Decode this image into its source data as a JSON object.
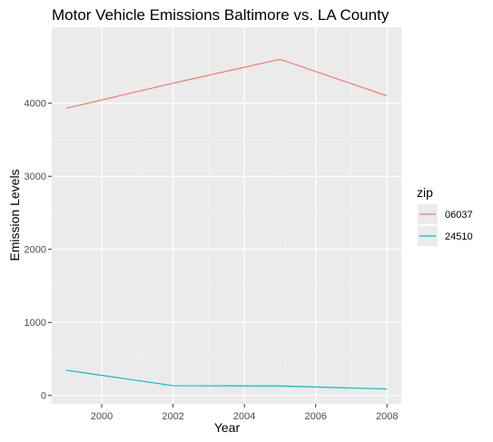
{
  "chart_data": {
    "type": "line",
    "title": "Motor Vehicle Emissions Baltimore vs. LA County",
    "xlabel": "Year",
    "ylabel": "Emission Levels",
    "xlim": [
      1998.6,
      2008.4
    ],
    "ylim": [
      -115,
      5040
    ],
    "x_ticks": [
      2000,
      2002,
      2004,
      2006,
      2008
    ],
    "y_ticks": [
      0,
      1000,
      2000,
      3000,
      4000
    ],
    "grid": true,
    "legend": {
      "title": "zip",
      "position": "right"
    },
    "x": [
      1999,
      2002,
      2005,
      2008
    ],
    "series": [
      {
        "name": "06037",
        "color": "#F8766D",
        "values": [
          3931,
          4274,
          4601,
          4101
        ]
      },
      {
        "name": "24510",
        "color": "#00BFC4",
        "values": [
          347,
          134,
          130,
          89
        ]
      }
    ]
  }
}
